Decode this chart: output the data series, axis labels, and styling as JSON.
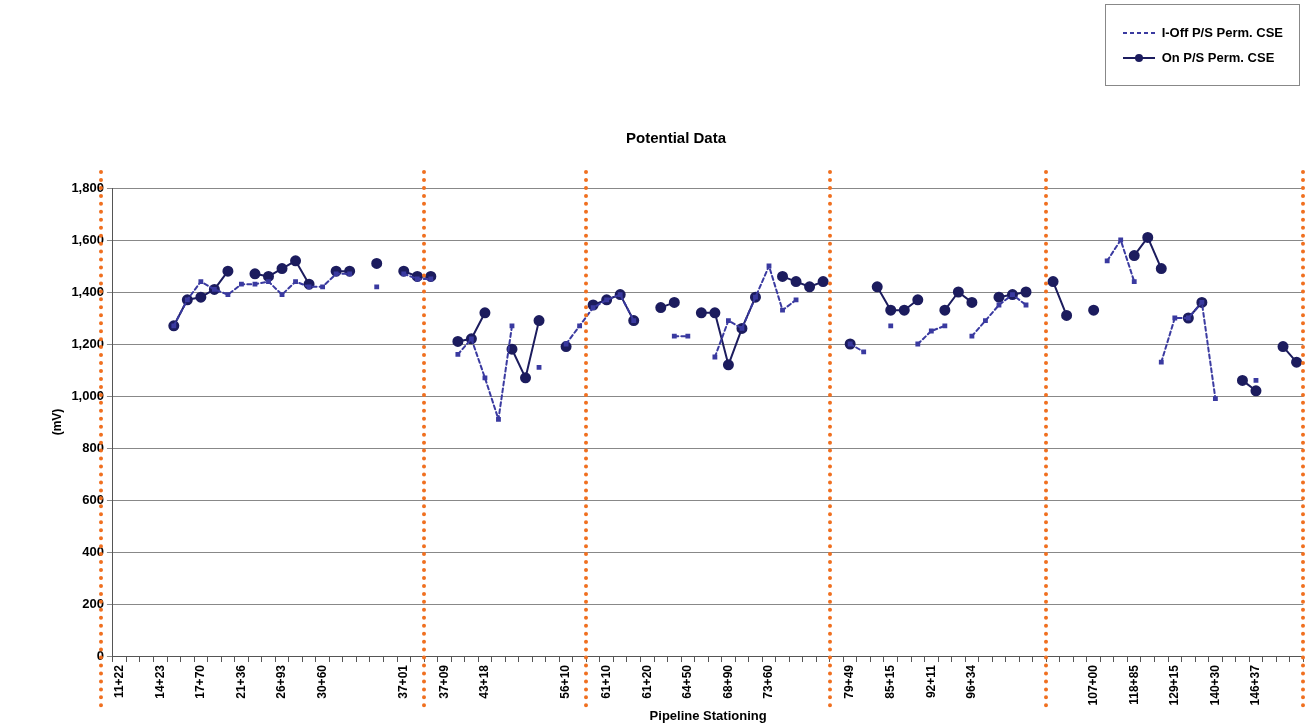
{
  "chart_data": {
    "type": "line",
    "title": "Potential Data",
    "xlabel": "Pipeline Stationing",
    "ylabel": "(mV)",
    "categories": [
      "11+22",
      null,
      null,
      "14+23",
      null,
      null,
      "17+70",
      null,
      null,
      "21+36",
      null,
      null,
      "26+93",
      null,
      null,
      "30+60",
      null,
      null,
      null,
      null,
      null,
      "37+01",
      null,
      null,
      "37+09",
      null,
      null,
      "43+18",
      null,
      null,
      null,
      null,
      null,
      "56+10",
      null,
      null,
      "61+10",
      null,
      null,
      "61+20",
      null,
      null,
      "64+50",
      null,
      null,
      "68+90",
      null,
      null,
      "73+60",
      null,
      null,
      null,
      null,
      null,
      "79+49",
      null,
      null,
      "85+15",
      null,
      null,
      "92+11",
      null,
      null,
      "96+34",
      null,
      null,
      null,
      null,
      null,
      null,
      null,
      null,
      "107+00",
      null,
      null,
      "118+85",
      null,
      null,
      "129+15",
      null,
      null,
      "140+30",
      null,
      null,
      "146+37",
      null,
      null,
      null
    ],
    "series": [
      {
        "name": "I-Off P/S Perm. CSE",
        "color": "#3a3aa0",
        "line_style": "dashed",
        "marker": "square",
        "values": [
          null,
          null,
          null,
          null,
          1270,
          1370,
          1440,
          1410,
          1390,
          1430,
          1430,
          1440,
          1390,
          1440,
          1420,
          1420,
          1470,
          1470,
          null,
          1420,
          null,
          1470,
          1450,
          1450,
          null,
          1160,
          1220,
          1070,
          910,
          1270,
          null,
          1110,
          null,
          1200,
          1270,
          1340,
          1370,
          1390,
          1290,
          null,
          null,
          1230,
          1230,
          null,
          1150,
          1290,
          1260,
          1380,
          1500,
          1330,
          1370,
          null,
          null,
          null,
          1200,
          1170,
          null,
          1270,
          null,
          1200,
          1250,
          1270,
          null,
          1230,
          1290,
          1350,
          1390,
          1350,
          null,
          null,
          null,
          null,
          null,
          1520,
          1600,
          1440,
          null,
          1130,
          1300,
          1300,
          1360,
          990,
          null,
          null,
          1060,
          null,
          null,
          null
        ]
      },
      {
        "name": "On P/S Perm. CSE",
        "color": "#1c1c5e",
        "line_style": "solid",
        "marker": "circle",
        "values": [
          null,
          null,
          null,
          null,
          1270,
          1370,
          1380,
          1410,
          1480,
          null,
          1470,
          1460,
          1490,
          1520,
          1430,
          null,
          1480,
          1480,
          null,
          1510,
          null,
          1480,
          1460,
          1460,
          null,
          1210,
          1220,
          1320,
          null,
          1180,
          1070,
          1290,
          null,
          1190,
          null,
          1350,
          1370,
          1390,
          1290,
          null,
          1340,
          1360,
          null,
          1320,
          1320,
          1120,
          1260,
          1380,
          null,
          1460,
          1440,
          1420,
          1440,
          null,
          1200,
          null,
          1420,
          1330,
          1330,
          1370,
          null,
          1330,
          1400,
          1360,
          null,
          1380,
          1390,
          1400,
          null,
          1440,
          1310,
          null,
          1330,
          null,
          null,
          1540,
          1610,
          1490,
          null,
          1300,
          1360,
          null,
          null,
          1060,
          1020,
          null,
          1190,
          1130
        ]
      }
    ],
    "ylim": [
      0,
      1800
    ],
    "yticks": [
      0,
      {
        "value": 200,
        "label": "200"
      },
      {
        "value": 400,
        "label": "400"
      },
      {
        "value": 600,
        "label": "600"
      },
      {
        "value": 800,
        "label": "800"
      },
      {
        "value": 1000,
        "label": "1,000"
      },
      {
        "value": 1200,
        "label": "1,200"
      },
      {
        "value": 1400,
        "label": "1,400"
      },
      {
        "value": 1600,
        "label": "1,600"
      },
      {
        "value": 1800,
        "label": "1,800"
      }
    ],
    "grid": "y",
    "legend": "top right"
  }
}
